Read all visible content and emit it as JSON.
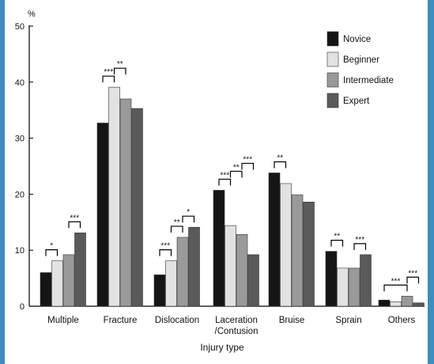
{
  "chart_data": {
    "type": "bar",
    "title": "",
    "ylabel": "%",
    "xlabel": "Injury type",
    "ylim": [
      0,
      50
    ],
    "yticks": [
      0,
      10,
      20,
      30,
      40,
      50
    ],
    "categories": [
      "Multiple",
      "Fracture",
      "Dislocation",
      "Laceration\n/Contusion",
      "Bruise",
      "Sprain",
      "Others"
    ],
    "series": [
      {
        "name": "Novice",
        "color": "#151515",
        "values": [
          6.0,
          32.7,
          5.6,
          20.7,
          23.8,
          9.8,
          1.1
        ]
      },
      {
        "name": "Beginner",
        "color": "#e2e2e2",
        "values": [
          8.1,
          39.1,
          8.1,
          14.4,
          21.9,
          6.8,
          0.8
        ]
      },
      {
        "name": "Intermediate",
        "color": "#9a9a9a",
        "values": [
          9.2,
          37.0,
          12.3,
          12.8,
          19.9,
          6.8,
          1.8
        ]
      },
      {
        "name": "Expert",
        "color": "#5a5a5a",
        "values": [
          13.1,
          35.3,
          14.1,
          9.2,
          18.6,
          9.2,
          0.6
        ]
      }
    ],
    "legend_position": "top-right",
    "grid": false,
    "annotations": [
      {
        "category": 0,
        "from": 0,
        "to": 1,
        "label": "*"
      },
      {
        "category": 0,
        "from": 2,
        "to": 3,
        "label": "***"
      },
      {
        "category": 1,
        "from": 0,
        "to": 1,
        "label": "***"
      },
      {
        "category": 1,
        "from": 1,
        "to": 2,
        "label": "**"
      },
      {
        "category": 2,
        "from": 0,
        "to": 1,
        "label": "***"
      },
      {
        "category": 2,
        "from": 1,
        "to": 2,
        "label": "**"
      },
      {
        "category": 2,
        "from": 2,
        "to": 3,
        "label": "*"
      },
      {
        "category": 3,
        "from": 0,
        "to": 1,
        "label": "***"
      },
      {
        "category": 3,
        "from": 1,
        "to": 2,
        "label": "**"
      },
      {
        "category": 3,
        "from": 2,
        "to": 3,
        "label": "***"
      },
      {
        "category": 4,
        "from": 0,
        "to": 1,
        "label": "**"
      },
      {
        "category": 5,
        "from": 0,
        "to": 1,
        "label": "**"
      },
      {
        "category": 5,
        "from": 2,
        "to": 3,
        "label": "***"
      },
      {
        "category": 6,
        "from": 0,
        "to": 2,
        "label": "***"
      },
      {
        "category": 6,
        "from": 2,
        "to": 3,
        "label": "***"
      }
    ]
  }
}
